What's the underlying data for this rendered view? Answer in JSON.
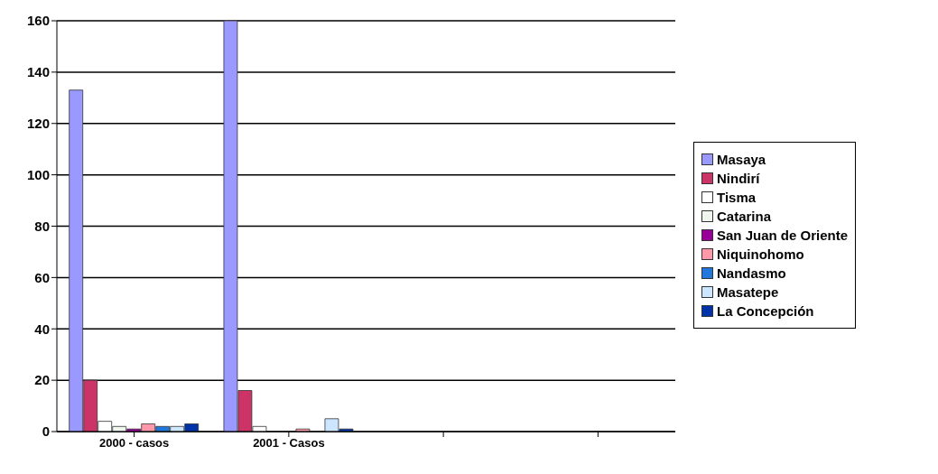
{
  "chart_data": {
    "type": "bar",
    "categories": [
      "2000 - casos",
      "2001 - Casos",
      null,
      null
    ],
    "series": [
      {
        "name": "Masaya",
        "color": "#9999ff",
        "values": [
          133,
          160,
          null,
          null
        ]
      },
      {
        "name": "Nindirí",
        "color": "#cc3366",
        "values": [
          20,
          16,
          null,
          null
        ]
      },
      {
        "name": "Tisma",
        "color": "#ffffff",
        "values": [
          4,
          2,
          null,
          null
        ]
      },
      {
        "name": "Catarina",
        "color": "#eef6ee",
        "values": [
          2,
          0,
          null,
          null
        ]
      },
      {
        "name": "San Juan de Oriente",
        "color": "#990099",
        "values": [
          1,
          0,
          null,
          null
        ]
      },
      {
        "name": "Niquinohomo",
        "color": "#ff99aa",
        "values": [
          3,
          1,
          null,
          null
        ]
      },
      {
        "name": "Nandasmo",
        "color": "#2277dd",
        "values": [
          2,
          0,
          null,
          null
        ]
      },
      {
        "name": "Masatepe",
        "color": "#cce6ff",
        "values": [
          2,
          5,
          null,
          null
        ]
      },
      {
        "name": "La Concepción",
        "color": "#0033aa",
        "values": [
          3,
          1,
          null,
          null
        ]
      }
    ],
    "ylim": [
      0,
      160
    ],
    "yticks": [
      0,
      20,
      40,
      60,
      80,
      100,
      120,
      140,
      160
    ],
    "grid": "y",
    "legend": "right"
  }
}
